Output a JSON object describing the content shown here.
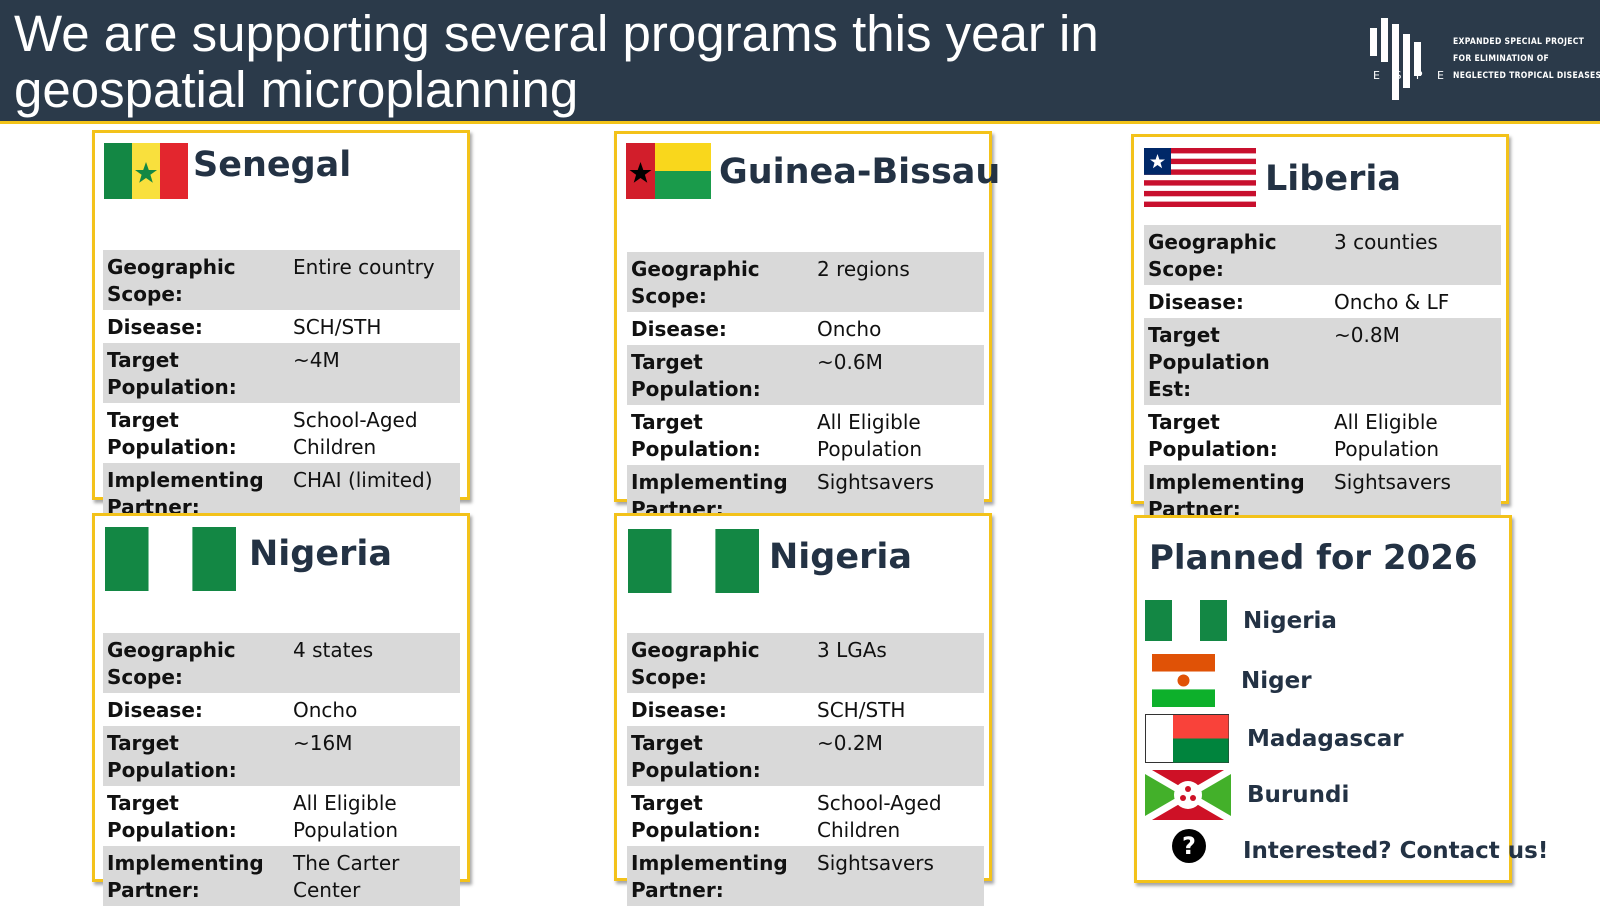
{
  "header": {
    "title_line1": "We are supporting several programs this year in",
    "title_line2": "geospatial microplanning",
    "logo_letters": "E S P E N",
    "logo_text_line1": "EXPANDED SPECIAL PROJECT",
    "logo_text_line2": "FOR ELIMINATION OF",
    "logo_text_line3": "NEGLECTED TROPICAL DISEASES"
  },
  "labels": {
    "geographic_scope": "Geographic Scope:",
    "disease": "Disease:",
    "target_population": "Target Population:",
    "target_population_est_1": "Target Population",
    "target_population_est_2": "Est:",
    "implementing_1": "Implementing",
    "implementing_2": "Partner:"
  },
  "programs": [
    {
      "country": "Senegal",
      "scope": "Entire country",
      "disease": "SCH/STH",
      "target_count": "~4M",
      "target_group_1": "School-Aged",
      "target_group_2": "Children",
      "partner_1": "CHAI (limited)",
      "partner_2": ""
    },
    {
      "country": "Guinea-Bissau",
      "scope": "2 regions",
      "disease": "Oncho",
      "target_count": "~0.6M",
      "target_group_1": "All Eligible",
      "target_group_2": "Population",
      "partner_1": "Sightsavers",
      "partner_2": ""
    },
    {
      "country": "Liberia",
      "scope": "3 counties",
      "disease": "Oncho & LF",
      "target_count": "~0.8M",
      "target_group_1": "All Eligible",
      "target_group_2": "Population",
      "partner_1": "Sightsavers",
      "partner_2": ""
    },
    {
      "country": "Nigeria",
      "scope": "4 states",
      "disease": "Oncho",
      "target_count": "~16M",
      "target_group_1": "All Eligible",
      "target_group_2": "Population",
      "partner_1": "The Carter",
      "partner_2": "Center"
    },
    {
      "country": "Nigeria",
      "scope": "3 LGAs",
      "disease": "SCH/STH",
      "target_count": "~0.2M",
      "target_group_1": "School-Aged",
      "target_group_2": "Children",
      "partner_1": "Sightsavers",
      "partner_2": ""
    }
  ],
  "planned": {
    "title": "Planned for 2026",
    "countries": [
      "Nigeria",
      "Niger",
      "Madagascar",
      "Burundi"
    ],
    "contact": "Interested? Contact us!",
    "help_icon_glyph": "?"
  },
  "colors": {
    "header_bg": "#2b3a4a",
    "accent_border": "#f3c21a",
    "title_text": "#233244",
    "row_shade": "#d9d9d9",
    "flag_green": "#138744",
    "flag_red": "#e3262e",
    "flag_yellow": "#f9e03d"
  }
}
